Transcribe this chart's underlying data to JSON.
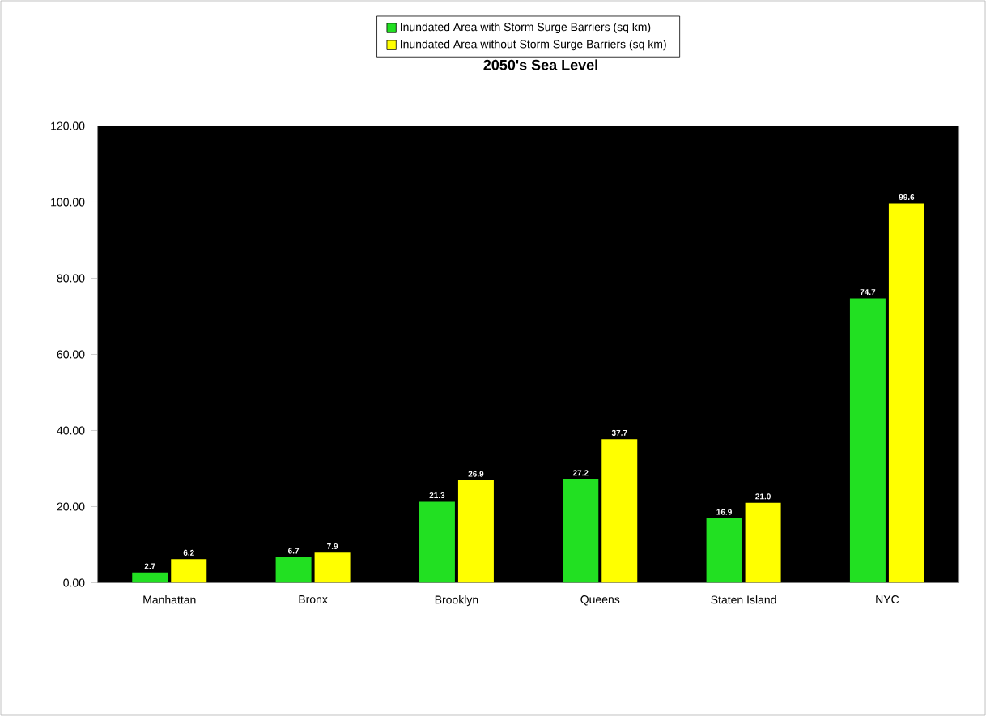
{
  "chart_data": {
    "type": "bar",
    "title": "2050's Sea Level",
    "categories": [
      "Manhattan",
      "Bronx",
      "Brooklyn",
      "Queens",
      "Staten Island",
      "NYC"
    ],
    "series": [
      {
        "name": "Inundated Area with Storm Surge Barriers (sq km)",
        "color": "#22e022",
        "values": [
          2.7,
          6.7,
          21.3,
          27.2,
          16.9,
          74.7
        ],
        "value_labels": [
          "2.7",
          "6.7",
          "21.3",
          "27.2",
          "16.9",
          "74.7"
        ]
      },
      {
        "name": "Inundated Area without Storm Surge Barriers (sq km)",
        "color": "#ffff00",
        "values": [
          6.2,
          7.9,
          26.9,
          37.7,
          21.0,
          99.6
        ],
        "value_labels": [
          "6.2",
          "7.9",
          "26.9",
          "37.7",
          "21.0",
          "99.6"
        ]
      }
    ],
    "ylim": [
      0,
      120
    ],
    "yticks": [
      {
        "value": 0,
        "label": "0.00"
      },
      {
        "value": 20,
        "label": "20.00"
      },
      {
        "value": 40,
        "label": "40.00"
      },
      {
        "value": 60,
        "label": "60.00"
      },
      {
        "value": 80,
        "label": "80.00"
      },
      {
        "value": 100,
        "label": "100.00"
      },
      {
        "value": 120,
        "label": "120.00"
      }
    ],
    "legend": "top",
    "grid": false
  }
}
